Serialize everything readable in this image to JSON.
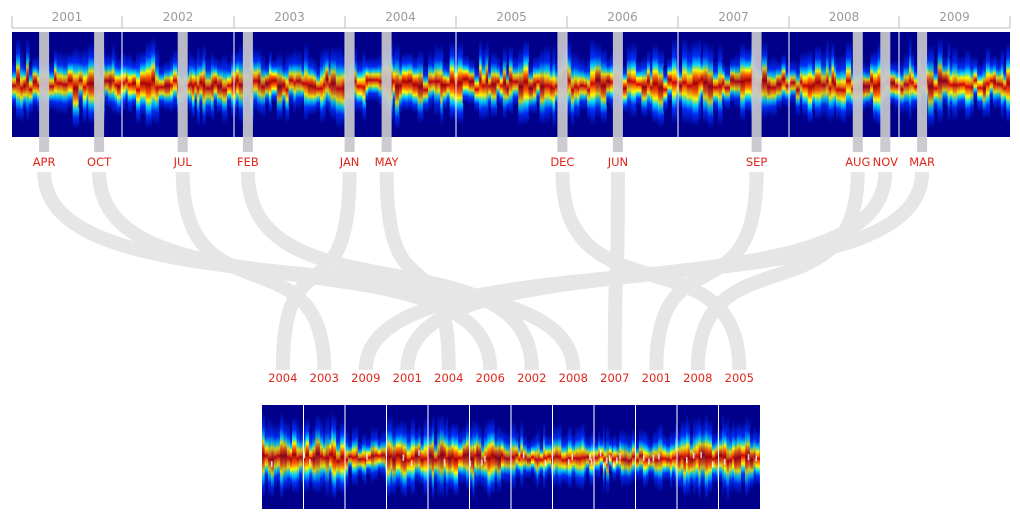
{
  "years": [
    "2001",
    "2002",
    "2003",
    "2004",
    "2005",
    "2006",
    "2007",
    "2008",
    "2009"
  ],
  "highlights": [
    {
      "month": "APR",
      "year": "2001",
      "month_index": 3,
      "slot": 7
    },
    {
      "month": "OCT",
      "year": "2001",
      "month_index": 9,
      "slot": 5
    },
    {
      "month": "JUL",
      "year": "2002",
      "month_index": 6,
      "slot": 1
    },
    {
      "month": "FEB",
      "year": "2003",
      "month_index": 1,
      "slot": 6
    },
    {
      "month": "JAN",
      "year": "2004",
      "month_index": 0,
      "slot": 0
    },
    {
      "month": "MAY",
      "year": "2004",
      "month_index": 4,
      "slot": 4
    },
    {
      "month": "DEC",
      "year": "2005",
      "month_index": 11,
      "slot": 11
    },
    {
      "month": "JUN",
      "year": "2006",
      "month_index": 5,
      "slot": 8
    },
    {
      "month": "SEP",
      "year": "2007",
      "month_index": 8,
      "slot": 9
    },
    {
      "month": "AUG",
      "year": "2008",
      "month_index": 7,
      "slot": 10
    },
    {
      "month": "NOV",
      "year": "2008",
      "month_index": 10,
      "slot": 3
    },
    {
      "month": "MAR",
      "year": "2009",
      "month_index": 2,
      "slot": 2
    }
  ],
  "bottom_labels": [
    "2004",
    "2003",
    "2009",
    "2001",
    "2004",
    "2006",
    "2002",
    "2008",
    "2007",
    "2001",
    "2008",
    "2005"
  ],
  "colors": {
    "background_band": "#00008a",
    "highlight_bar": "#c8c8cc",
    "ribbon": "#e6e6e6",
    "year_text": "#9a9a9a",
    "label_text": "#e0251b"
  }
}
